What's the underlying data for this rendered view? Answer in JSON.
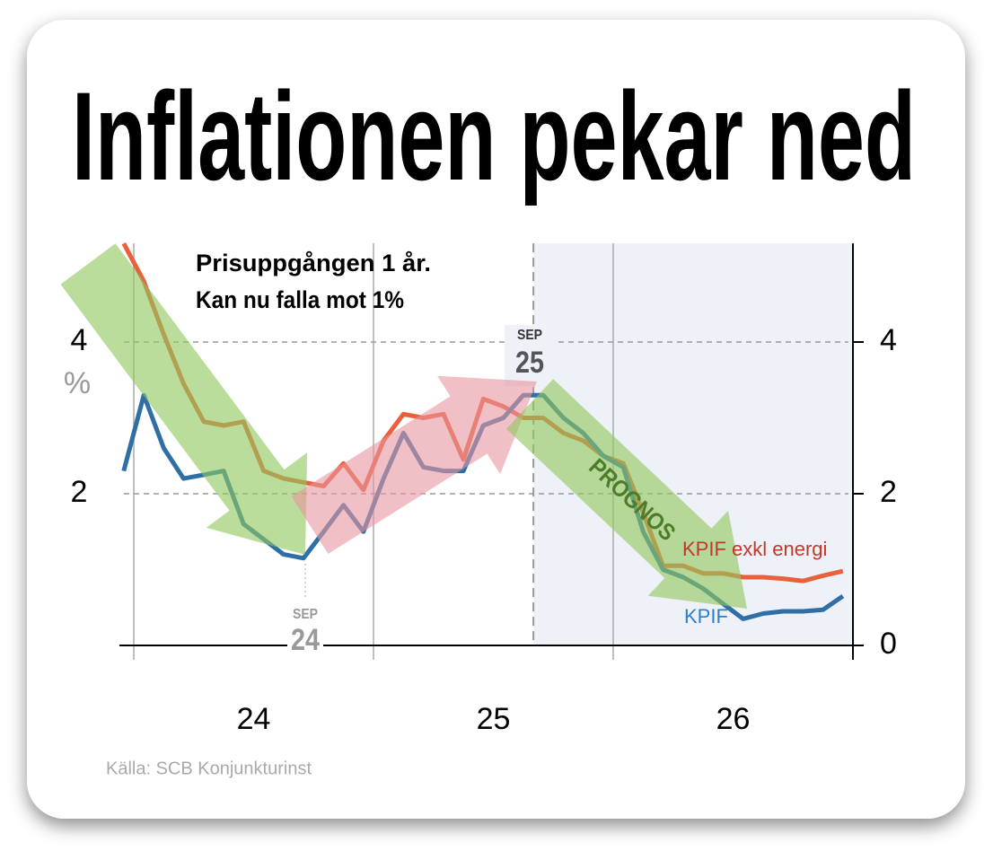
{
  "chart_data": {
    "type": "line",
    "title": "Inflationen pekar ned",
    "note": [
      "Prisuppgången 1 år.",
      "Kan nu falla mot 1%"
    ],
    "y_unit": "%",
    "markers": [
      {
        "month": "SEP",
        "year": "24"
      },
      {
        "month": "SEP",
        "year": "25"
      }
    ],
    "forecast_label": "PROGNOS",
    "source": "Källa: SCB Konjunkturinst",
    "x": [
      23.958,
      24.042,
      24.125,
      24.208,
      24.292,
      24.375,
      24.458,
      24.542,
      24.625,
      24.708,
      24.792,
      24.875,
      24.958,
      25.042,
      25.125,
      25.208,
      25.292,
      25.375,
      25.458,
      25.542,
      25.625,
      25.708,
      25.792,
      25.875,
      25.958,
      26.042,
      26.125,
      26.208,
      26.292,
      26.375,
      26.458,
      26.542,
      26.625,
      26.708,
      26.792,
      26.875,
      26.958
    ],
    "series": [
      {
        "name": "KPIF exkl energi",
        "color": "#e8603c",
        "label_color": "#c0392b",
        "values": [
          5.3,
          4.8,
          4.1,
          3.45,
          2.95,
          2.9,
          2.95,
          2.3,
          2.2,
          2.15,
          2.1,
          2.4,
          2.05,
          2.7,
          3.05,
          3.0,
          3.05,
          2.45,
          3.25,
          3.15,
          3.0,
          3.0,
          2.8,
          2.7,
          2.5,
          2.4,
          1.75,
          1.05,
          1.05,
          0.95,
          0.95,
          0.9,
          0.9,
          0.88,
          0.85,
          0.92,
          0.98
        ]
      },
      {
        "name": "KPIF",
        "color": "#2f6fa6",
        "label_color": "#2a7fd4",
        "values": [
          2.3,
          3.3,
          2.6,
          2.2,
          2.25,
          2.3,
          1.6,
          1.4,
          1.2,
          1.15,
          1.5,
          1.85,
          1.5,
          2.2,
          2.8,
          2.35,
          2.3,
          2.3,
          2.9,
          3.0,
          3.3,
          3.3,
          3.0,
          2.8,
          2.5,
          2.35,
          1.5,
          1.0,
          0.9,
          0.75,
          0.55,
          0.35,
          0.42,
          0.45,
          0.45,
          0.47,
          0.65
        ]
      }
    ],
    "forecast_start": 25.667,
    "xlim": [
      23.95,
      27
    ],
    "ylim": [
      0,
      5.3
    ],
    "xticks": [
      {
        "value": 24.5,
        "label": "24"
      },
      {
        "value": 25.5,
        "label": "25"
      },
      {
        "value": 26.5,
        "label": "26"
      }
    ],
    "xgrid": [
      24,
      25,
      26,
      27
    ],
    "yticks": [
      0,
      2,
      4
    ],
    "left_yticks": [
      2,
      4
    ],
    "grid": true
  }
}
